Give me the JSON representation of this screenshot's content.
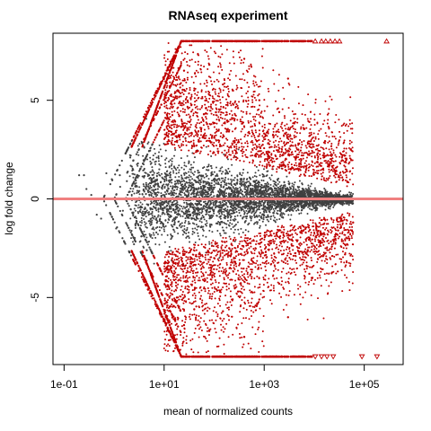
{
  "chart_data": {
    "type": "scatter",
    "title": "RNAseq experiment",
    "xlabel": "mean of normalized counts",
    "ylabel": "log fold change",
    "x_scale": "log10",
    "xlim": [
      0.06,
      600000
    ],
    "ylim": [
      -8.4,
      8.4
    ],
    "x_ticks": [
      {
        "value": 0.1,
        "label": "1e-01"
      },
      {
        "value": 10,
        "label": "1e+01"
      },
      {
        "value": 1000,
        "label": "1e+03"
      },
      {
        "value": 100000,
        "label": "1e+05"
      }
    ],
    "y_ticks": [
      {
        "value": -5,
        "label": "-5"
      },
      {
        "value": 0,
        "label": "0"
      },
      {
        "value": 5,
        "label": "5"
      }
    ],
    "reference_line": {
      "y": 0,
      "color": "#f08080"
    },
    "grid": false,
    "legend": "none",
    "series": [
      {
        "color": "#404040",
        "points": [
          [
            0.2,
            1.2
          ],
          [
            0.25,
            1.2
          ],
          [
            0.28,
            0.5
          ],
          [
            0.45,
            -0.8
          ],
          [
            0.55,
            -1.0
          ],
          [
            0.35,
            0.2
          ],
          [
            0.7,
            1.3
          ],
          [
            0.9,
            1.0
          ],
          [
            1.1,
            -1.5
          ],
          [
            1.3,
            1.2
          ],
          [
            1.5,
            -0.6
          ],
          [
            1.8,
            0.9
          ],
          [
            2.1,
            2.1
          ],
          [
            2.5,
            -2.3
          ],
          [
            3.0,
            1.8
          ],
          [
            3.5,
            -1.9
          ],
          [
            4.0,
            2.6
          ],
          [
            4.5,
            -2.6
          ],
          [
            5.0,
            1.2
          ],
          [
            5.5,
            -1.0
          ],
          [
            6.0,
            2.0
          ],
          [
            7.0,
            -1.7
          ],
          [
            8.0,
            1.5
          ],
          [
            9.0,
            -1.2
          ],
          [
            3.2,
            0.4
          ],
          [
            4.2,
            -0.5
          ],
          [
            5.2,
            0.8
          ],
          [
            6.5,
            -0.9
          ],
          [
            7.5,
            0.5
          ],
          [
            8.5,
            -0.4
          ],
          [
            10,
            1.0
          ],
          [
            12,
            -0.8
          ],
          [
            15,
            0.6
          ],
          [
            18,
            -0.5
          ],
          [
            22,
            0.7
          ],
          [
            30,
            -0.6
          ],
          [
            40,
            0.4
          ],
          [
            55,
            -0.3
          ],
          [
            80,
            0.5
          ],
          [
            110,
            -0.4
          ],
          [
            160,
            0.3
          ],
          [
            230,
            -0.3
          ],
          [
            330,
            0.4
          ],
          [
            500,
            -0.2
          ],
          [
            700,
            0.3
          ],
          [
            1000,
            -0.2
          ],
          [
            1500,
            0.2
          ],
          [
            2200,
            -0.2
          ],
          [
            3500,
            0.1
          ],
          [
            5000,
            -0.1
          ],
          [
            8000,
            0.1
          ],
          [
            12000,
            0.05
          ],
          [
            20000,
            -0.05
          ],
          [
            30000,
            0.1
          ]
        ]
      },
      {
        "color": "#c00000",
        "points": [
          [
            22,
            8
          ],
          [
            35,
            8
          ],
          [
            60,
            8
          ],
          [
            120,
            8
          ],
          [
            250,
            8
          ],
          [
            600,
            8
          ],
          [
            1200,
            8
          ],
          [
            2500,
            8
          ],
          [
            5000,
            8
          ],
          [
            22,
            -8
          ],
          [
            35,
            -8
          ],
          [
            60,
            -8
          ],
          [
            120,
            -8
          ],
          [
            250,
            -8
          ],
          [
            600,
            -8
          ],
          [
            1200,
            -8
          ],
          [
            2500,
            -8
          ],
          [
            5000,
            -8
          ],
          [
            12,
            2.8
          ],
          [
            14,
            3.4
          ],
          [
            18,
            5.1
          ],
          [
            20,
            4.2
          ],
          [
            25,
            6.5
          ],
          [
            30,
            3.6
          ],
          [
            40,
            5.5
          ],
          [
            50,
            2.9
          ],
          [
            60,
            4.0
          ],
          [
            80,
            6.8
          ],
          [
            100,
            3.1
          ],
          [
            150,
            5.8
          ],
          [
            200,
            2.6
          ],
          [
            300,
            4.6
          ],
          [
            400,
            7.1
          ],
          [
            600,
            3.3
          ],
          [
            800,
            5.0
          ],
          [
            1200,
            2.4
          ],
          [
            2000,
            4.4
          ],
          [
            3000,
            6.1
          ],
          [
            5000,
            2.8
          ],
          [
            8000,
            3.9
          ],
          [
            15000,
            2.2
          ],
          [
            12,
            -2.7
          ],
          [
            14,
            -3.5
          ],
          [
            18,
            -5.0
          ],
          [
            20,
            -4.1
          ],
          [
            25,
            -6.4
          ],
          [
            30,
            -3.7
          ],
          [
            40,
            -5.6
          ],
          [
            50,
            -2.8
          ],
          [
            60,
            -4.1
          ],
          [
            80,
            -6.7
          ],
          [
            100,
            -3.0
          ],
          [
            150,
            -5.7
          ],
          [
            200,
            -2.5
          ],
          [
            300,
            -4.7
          ],
          [
            400,
            -7.0
          ],
          [
            600,
            -3.2
          ],
          [
            800,
            -5.1
          ],
          [
            1200,
            -2.3
          ],
          [
            2000,
            -4.3
          ],
          [
            3000,
            -6.0
          ],
          [
            5000,
            -2.7
          ],
          [
            8000,
            -3.8
          ],
          [
            15000,
            -2.1
          ],
          [
            20000,
            1.7
          ],
          [
            30000,
            -1.6
          ],
          [
            45000,
            1.4
          ],
          [
            60000,
            -1.2
          ]
        ]
      },
      {
        "marker": "triangle",
        "color": "#c00000",
        "points": [
          [
            10500,
            8
          ],
          [
            14000,
            8
          ],
          [
            17000,
            8
          ],
          [
            21000,
            8
          ],
          [
            26000,
            8
          ],
          [
            32000,
            8
          ],
          [
            280000,
            8
          ],
          [
            10500,
            -8
          ],
          [
            14000,
            -8
          ],
          [
            18000,
            -8
          ],
          [
            24000,
            -8
          ],
          [
            90000,
            -8
          ],
          [
            180000,
            -8
          ]
        ]
      }
    ],
    "notes_visual": "Both series render as ~thousands of small points; the script densifies them procedurally around the listed representative points."
  }
}
